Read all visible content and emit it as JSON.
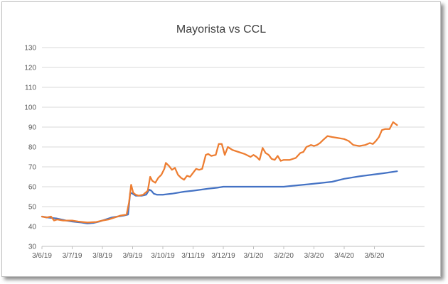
{
  "chart_data": {
    "type": "line",
    "title": "Mayorista vs CCL",
    "xlabel": "",
    "ylabel": "",
    "ylim": [
      30,
      130
    ],
    "y_ticks": [
      30,
      40,
      50,
      60,
      70,
      80,
      90,
      100,
      110,
      120,
      130
    ],
    "x_ticks": [
      "3/6/19",
      "3/7/19",
      "3/8/19",
      "3/9/19",
      "3/10/19",
      "3/11/19",
      "3/12/19",
      "3/1/20",
      "3/2/20",
      "3/3/20",
      "3/4/20",
      "3/5/20"
    ],
    "xlim": [
      0,
      11.75
    ],
    "grid": "horizontal",
    "legend": "none",
    "series": [
      {
        "color": "#4472c4",
        "points": [
          [
            0.0,
            45
          ],
          [
            0.2,
            44.5
          ],
          [
            0.5,
            44
          ],
          [
            0.8,
            43
          ],
          [
            1.0,
            42.5
          ],
          [
            1.3,
            42
          ],
          [
            1.5,
            41.5
          ],
          [
            1.7,
            41.8
          ],
          [
            1.9,
            42.5
          ],
          [
            2.1,
            43.5
          ],
          [
            2.3,
            44.5
          ],
          [
            2.5,
            45
          ],
          [
            2.7,
            45.5
          ],
          [
            2.85,
            46
          ],
          [
            2.92,
            57
          ],
          [
            3.0,
            56.5
          ],
          [
            3.1,
            55.5
          ],
          [
            3.2,
            55.5
          ],
          [
            3.3,
            55.5
          ],
          [
            3.45,
            56
          ],
          [
            3.55,
            58.5
          ],
          [
            3.62,
            58
          ],
          [
            3.7,
            56.5
          ],
          [
            3.8,
            56
          ],
          [
            4.0,
            56
          ],
          [
            4.3,
            56.5
          ],
          [
            4.7,
            57.5
          ],
          [
            5.0,
            58
          ],
          [
            5.5,
            59
          ],
          [
            5.8,
            59.5
          ],
          [
            6.0,
            60
          ],
          [
            6.5,
            60
          ],
          [
            7.0,
            60
          ],
          [
            7.5,
            60
          ],
          [
            8.0,
            60
          ],
          [
            8.3,
            60.5
          ],
          [
            8.8,
            61.2
          ],
          [
            9.3,
            62
          ],
          [
            9.6,
            62.5
          ],
          [
            10.0,
            64
          ],
          [
            10.5,
            65.2
          ],
          [
            11.0,
            66.2
          ],
          [
            11.3,
            66.8
          ],
          [
            11.5,
            67.2
          ],
          [
            11.75,
            67.8
          ]
        ]
      },
      {
        "color": "#ed7d31",
        "points": [
          [
            0.0,
            45
          ],
          [
            0.15,
            44.5
          ],
          [
            0.3,
            45
          ],
          [
            0.4,
            43
          ],
          [
            0.5,
            43.5
          ],
          [
            0.7,
            43
          ],
          [
            1.0,
            43
          ],
          [
            1.2,
            42.5
          ],
          [
            1.5,
            42
          ],
          [
            1.8,
            42.3
          ],
          [
            2.0,
            43
          ],
          [
            2.2,
            43.5
          ],
          [
            2.4,
            44.5
          ],
          [
            2.6,
            45.5
          ],
          [
            2.8,
            46
          ],
          [
            2.88,
            52
          ],
          [
            2.95,
            61
          ],
          [
            3.02,
            57
          ],
          [
            3.1,
            56
          ],
          [
            3.2,
            55.5
          ],
          [
            3.35,
            56
          ],
          [
            3.5,
            58
          ],
          [
            3.58,
            65
          ],
          [
            3.65,
            63
          ],
          [
            3.75,
            62
          ],
          [
            3.85,
            64.5
          ],
          [
            3.95,
            66
          ],
          [
            4.05,
            69
          ],
          [
            4.1,
            72
          ],
          [
            4.2,
            70.5
          ],
          [
            4.3,
            68.5
          ],
          [
            4.4,
            69.5
          ],
          [
            4.5,
            66
          ],
          [
            4.6,
            64.5
          ],
          [
            4.7,
            63.5
          ],
          [
            4.8,
            65.5
          ],
          [
            4.9,
            65
          ],
          [
            5.0,
            67
          ],
          [
            5.1,
            69
          ],
          [
            5.2,
            68.5
          ],
          [
            5.3,
            69
          ],
          [
            5.42,
            76
          ],
          [
            5.5,
            76.5
          ],
          [
            5.6,
            75.5
          ],
          [
            5.75,
            76
          ],
          [
            5.85,
            81.5
          ],
          [
            5.95,
            81.5
          ],
          [
            6.05,
            76
          ],
          [
            6.15,
            80
          ],
          [
            6.3,
            78.5
          ],
          [
            6.5,
            77.5
          ],
          [
            6.7,
            76.5
          ],
          [
            6.9,
            75
          ],
          [
            7.0,
            76
          ],
          [
            7.1,
            75
          ],
          [
            7.2,
            73.5
          ],
          [
            7.3,
            79.5
          ],
          [
            7.4,
            77
          ],
          [
            7.5,
            76
          ],
          [
            7.6,
            74
          ],
          [
            7.7,
            73.5
          ],
          [
            7.8,
            75.5
          ],
          [
            7.9,
            73
          ],
          [
            8.0,
            73.5
          ],
          [
            8.2,
            73.5
          ],
          [
            8.4,
            74.5
          ],
          [
            8.55,
            77
          ],
          [
            8.65,
            77.5
          ],
          [
            8.75,
            80
          ],
          [
            8.9,
            81
          ],
          [
            9.0,
            80.5
          ],
          [
            9.1,
            81
          ],
          [
            9.2,
            82
          ],
          [
            9.3,
            83.5
          ],
          [
            9.45,
            85.5
          ],
          [
            9.6,
            85
          ],
          [
            9.8,
            84.5
          ],
          [
            10.0,
            84
          ],
          [
            10.15,
            83
          ],
          [
            10.3,
            81
          ],
          [
            10.5,
            80.5
          ],
          [
            10.7,
            81
          ],
          [
            10.85,
            82
          ],
          [
            10.95,
            81.5
          ],
          [
            11.05,
            83
          ],
          [
            11.15,
            85
          ],
          [
            11.25,
            88.5
          ],
          [
            11.35,
            89
          ],
          [
            11.5,
            89
          ],
          [
            11.62,
            92.5
          ],
          [
            11.75,
            91
          ]
        ]
      }
    ]
  }
}
